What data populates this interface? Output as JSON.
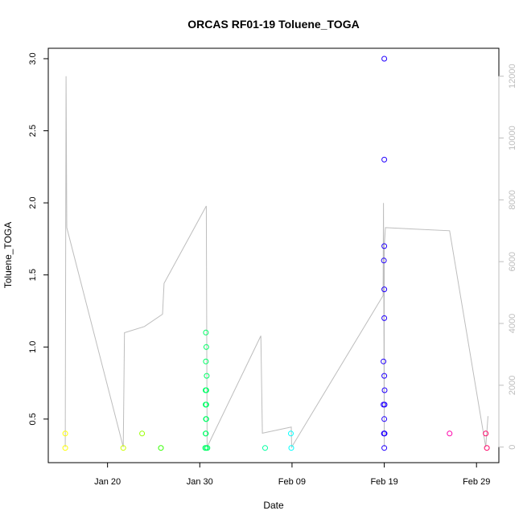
{
  "chart_data": {
    "type": "scatter",
    "title": "ORCAS RF01-19 Toluene_TOGA",
    "xlabel": "Date",
    "ylabel": "Toluene_TOGA",
    "x_axis": {
      "type": "date",
      "ticks": [
        {
          "date": "2016-01-20",
          "label": "Jan 20"
        },
        {
          "date": "2016-01-30",
          "label": "Jan 30"
        },
        {
          "date": "2016-02-09",
          "label": "Feb 09"
        },
        {
          "date": "2016-02-19",
          "label": "Feb 19"
        },
        {
          "date": "2016-02-29",
          "label": "Feb 29"
        }
      ],
      "range": [
        "2016-01-13T18:00",
        "2016-03-02T06:00"
      ]
    },
    "y_axis": {
      "range": [
        0.22,
        3.05
      ],
      "ticks": [
        0.5,
        1.0,
        1.5,
        2.0,
        2.5,
        3.0
      ],
      "tick_labels": [
        "0.5",
        "1.0",
        "1.5",
        "2.0",
        "2.5",
        "3.0"
      ]
    },
    "y2_axis": {
      "range": [
        -400,
        12800
      ],
      "ticks": [
        0,
        2000,
        4000,
        6000,
        8000,
        10000,
        12000
      ],
      "tick_labels": [
        "0",
        "2000",
        "4000",
        "6000",
        "8000",
        "10000",
        "12000"
      ],
      "color": "#bdbdbd"
    },
    "grid": false,
    "legend": "none",
    "scatter_points": [
      {
        "date": "2016-01-15T10:00",
        "y": 0.4,
        "color": "#ffff00"
      },
      {
        "date": "2016-01-15T10:00",
        "y": 0.3,
        "color": "#ffff00"
      },
      {
        "date": "2016-01-21T17:00",
        "y": 0.3,
        "color": "#ccff00"
      },
      {
        "date": "2016-01-23T18:00",
        "y": 0.4,
        "color": "#99ff00"
      },
      {
        "date": "2016-01-25T19:00",
        "y": 0.3,
        "color": "#33ff00"
      },
      {
        "date": "2016-01-30T16:00",
        "y": 1.1,
        "color": "#00ff66"
      },
      {
        "date": "2016-01-30T17:00",
        "y": 1.0,
        "color": "#00ff66"
      },
      {
        "date": "2016-01-30T16:00",
        "y": 0.9,
        "color": "#00ff66"
      },
      {
        "date": "2016-01-30T18:00",
        "y": 0.8,
        "color": "#00ff66"
      },
      {
        "date": "2016-01-30T15:00",
        "y": 0.7,
        "color": "#00ff66"
      },
      {
        "date": "2016-01-30T17:00",
        "y": 0.7,
        "color": "#00ff66"
      },
      {
        "date": "2016-01-30T15:00",
        "y": 0.6,
        "color": "#00ff66"
      },
      {
        "date": "2016-01-30T17:00",
        "y": 0.6,
        "color": "#00ff66"
      },
      {
        "date": "2016-01-30T16:00",
        "y": 0.5,
        "color": "#00ff66"
      },
      {
        "date": "2016-01-30T17:00",
        "y": 0.5,
        "color": "#00ff66"
      },
      {
        "date": "2016-01-30T15:00",
        "y": 0.4,
        "color": "#00ff66"
      },
      {
        "date": "2016-01-30T16:00",
        "y": 0.4,
        "color": "#00ff66"
      },
      {
        "date": "2016-01-30T14:00",
        "y": 0.3,
        "color": "#00ff66"
      },
      {
        "date": "2016-01-30T17:00",
        "y": 0.3,
        "color": "#00ff66"
      },
      {
        "date": "2016-01-30T20:00",
        "y": 0.3,
        "color": "#00ff66"
      },
      {
        "date": "2016-02-06T02:00",
        "y": 0.3,
        "color": "#00ffa0"
      },
      {
        "date": "2016-02-08T21:00",
        "y": 0.4,
        "color": "#00ffff"
      },
      {
        "date": "2016-02-08T22:00",
        "y": 0.3,
        "color": "#00ffff"
      },
      {
        "date": "2016-02-18T22:00",
        "y": 0.9,
        "color": "#2200ff"
      },
      {
        "date": "2016-02-18T22:00",
        "y": 0.6,
        "color": "#2200ff"
      },
      {
        "date": "2016-02-18T23:00",
        "y": 0.4,
        "color": "#2200ff"
      },
      {
        "date": "2016-02-19T00:00",
        "y": 3.0,
        "color": "#2200ff"
      },
      {
        "date": "2016-02-19T00:00",
        "y": 2.3,
        "color": "#2200ff"
      },
      {
        "date": "2016-02-19T00:00",
        "y": 1.7,
        "color": "#2200ff"
      },
      {
        "date": "2016-02-18T23:00",
        "y": 1.6,
        "color": "#2200ff"
      },
      {
        "date": "2016-02-19T00:00",
        "y": 1.4,
        "color": "#2200ff"
      },
      {
        "date": "2016-02-19T00:00",
        "y": 1.2,
        "color": "#2200ff"
      },
      {
        "date": "2016-02-19T00:00",
        "y": 0.8,
        "color": "#2200ff"
      },
      {
        "date": "2016-02-19T01:00",
        "y": 0.7,
        "color": "#2200ff"
      },
      {
        "date": "2016-02-19T01:00",
        "y": 0.6,
        "color": "#2200ff"
      },
      {
        "date": "2016-02-19T00:00",
        "y": 0.5,
        "color": "#2200ff"
      },
      {
        "date": "2016-02-19T00:00",
        "y": 0.4,
        "color": "#2200ff"
      },
      {
        "date": "2016-02-19T01:00",
        "y": 0.4,
        "color": "#2200ff"
      },
      {
        "date": "2016-02-19T00:00",
        "y": 0.3,
        "color": "#2200ff"
      },
      {
        "date": "2016-02-26T02:00",
        "y": 0.4,
        "color": "#ff00aa"
      },
      {
        "date": "2016-03-01T00:00",
        "y": 0.4,
        "color": "#ff0066"
      },
      {
        "date": "2016-03-01T03:00",
        "y": 0.3,
        "color": "#ff0066"
      }
    ],
    "line_series": {
      "axis": "right",
      "color": "#bdbdbd",
      "points": [
        {
          "date": "2016-01-15T10:00",
          "y": 0
        },
        {
          "date": "2016-01-15T12:00",
          "y": 12000
        },
        {
          "date": "2016-01-15T14:00",
          "y": 7100
        },
        {
          "date": "2016-01-21T17:00",
          "y": 0
        },
        {
          "date": "2016-01-21T20:00",
          "y": 3700
        },
        {
          "date": "2016-01-24T00:00",
          "y": 3900
        },
        {
          "date": "2016-01-25T23:00",
          "y": 4300
        },
        {
          "date": "2016-01-26T03:00",
          "y": 5300
        },
        {
          "date": "2016-01-30T17:00",
          "y": 7800
        },
        {
          "date": "2016-01-30T19:00",
          "y": 0
        },
        {
          "date": "2016-02-05T15:00",
          "y": 3600
        },
        {
          "date": "2016-02-05T19:00",
          "y": 450
        },
        {
          "date": "2016-02-08T22:00",
          "y": 650
        },
        {
          "date": "2016-02-08T23:00",
          "y": 0
        },
        {
          "date": "2016-02-18T21:00",
          "y": 4900
        },
        {
          "date": "2016-02-18T22:00",
          "y": 7900
        },
        {
          "date": "2016-02-19T00:00",
          "y": 0
        },
        {
          "date": "2016-02-19T00:00",
          "y": 6500
        },
        {
          "date": "2016-02-19T03:00",
          "y": 7100
        },
        {
          "date": "2016-02-26T02:00",
          "y": 7000
        },
        {
          "date": "2016-03-01T00:00",
          "y": 0
        },
        {
          "date": "2016-03-01T06:00",
          "y": 1000
        }
      ]
    }
  }
}
